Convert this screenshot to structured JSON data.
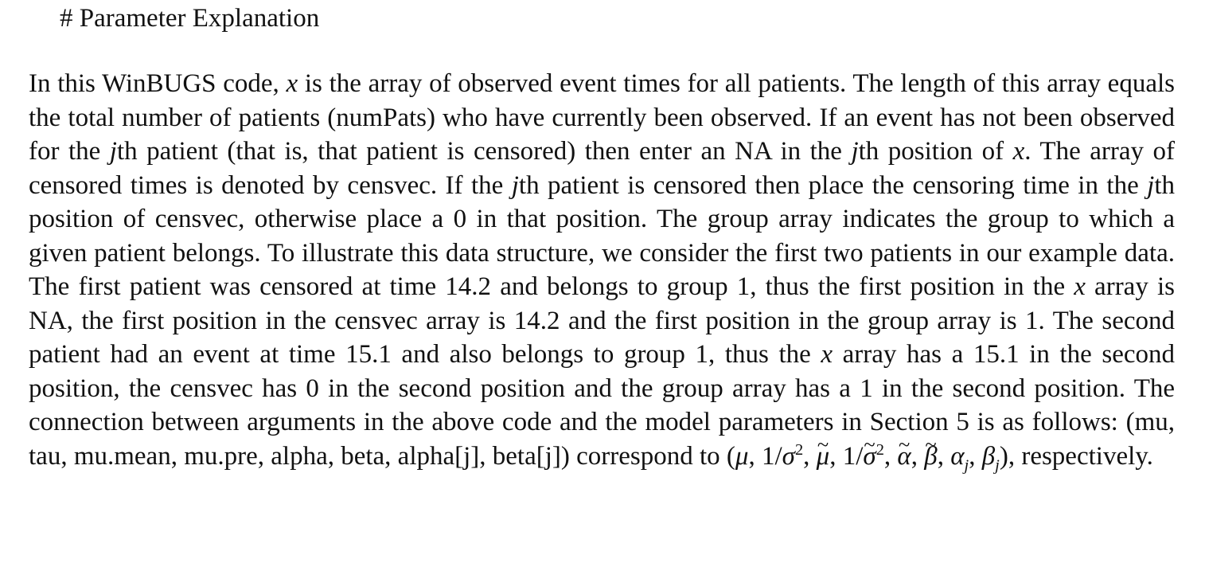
{
  "heading": "# Parameter Explanation",
  "p": {
    "s1": "In this WinBUGS code, ",
    "x1": "x",
    "s2": " is the array of observed event times for all patients. The length of this array equals the total number of patients (numPats) who have currently been observed. If an event has not been observed for the ",
    "j1": "j",
    "s3": "th patient (that is, that patient is censored) then enter an NA in the ",
    "j2": "j",
    "s4": "th position of ",
    "x2": "x",
    "s5": ". The array of censored times is denoted by censvec. If the ",
    "j3": "j",
    "s6": "th patient is censored then place the censoring time in the ",
    "j4": "j",
    "s7": "th position of censvec, otherwise place a 0 in that position. The group array indicates the group to which a given patient belongs. To illustrate this data structure, we consider the first two patients in our example data. The first patient was censored at time 14.2 and belongs to group 1, thus the first position in the ",
    "x3": "x",
    "s8": " array is NA, the first position in the censvec array is 14.2 and the first position in the group array is 1. The second patient had an event at time 15.1 and also belongs to group 1, thus the ",
    "x4": "x",
    "s9": " array has a 15.1 in the second position, the censvec has 0 in the second position and the group array has a 1 in the second position. The connection between arguments in the above code and the model parameters in Section 5 is as follows: (mu, tau, mu.mean, mu.pre, alpha, beta, alpha[j], beta[j]) correspond to ",
    "s10": ", respectively."
  },
  "math": {
    "open": "(",
    "mu": "μ",
    "sep": ", ",
    "one_over": "1/",
    "sigma": "σ",
    "sq": "2",
    "tilde_mark": "~",
    "alpha": "α",
    "beta": "β",
    "sub_j": "j",
    "close": ")"
  }
}
